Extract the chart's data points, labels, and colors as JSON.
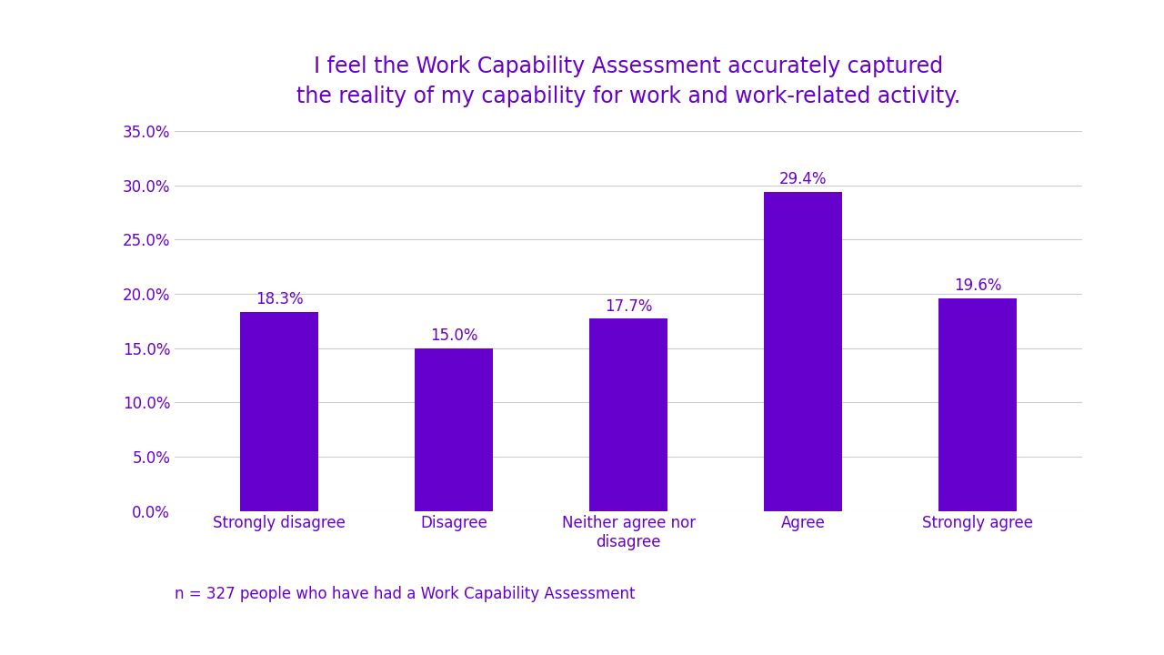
{
  "title": "I feel the Work Capability Assessment accurately captured\nthe reality of my capability for work and work-related activity.",
  "categories": [
    "Strongly disagree",
    "Disagree",
    "Neither agree nor\ndisagree",
    "Agree",
    "Strongly agree"
  ],
  "values": [
    18.3,
    15.0,
    17.7,
    29.4,
    19.6
  ],
  "bar_color": "#6600cc",
  "title_color": "#6600cc",
  "tick_color": "#6600cc",
  "annotation_color": "#6600cc",
  "footnote_color": "#6600cc",
  "footnote": "n = 327 people who have had a Work Capability Assessment",
  "ylim": [
    0,
    35
  ],
  "yticks": [
    0,
    5,
    10,
    15,
    20,
    25,
    30,
    35
  ],
  "background_color": "#ffffff",
  "grid_color": "#cccccc",
  "title_fontsize": 17,
  "tick_fontsize": 12,
  "annotation_fontsize": 12,
  "footnote_fontsize": 12
}
